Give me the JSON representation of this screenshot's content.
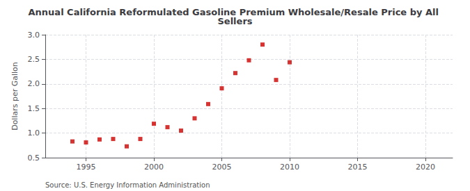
{
  "chart_data": {
    "type": "scatter",
    "title": "Annual California Reformulated Gasoline Premium Wholesale/Resale Price by All Sellers",
    "ylabel": "Dollars per Gallon",
    "source": "Source: U.S. Energy Information Administration",
    "x": [
      1994,
      1995,
      1996,
      1997,
      1998,
      1999,
      2000,
      2001,
      2002,
      2003,
      2004,
      2005,
      2006,
      2007,
      2008,
      2009,
      2010
    ],
    "values": [
      0.83,
      0.81,
      0.87,
      0.88,
      0.73,
      0.88,
      1.19,
      1.12,
      1.05,
      1.3,
      1.59,
      1.91,
      2.22,
      2.48,
      2.8,
      2.08,
      2.44
    ],
    "color": "#cc0000",
    "marker": "square",
    "xlim": [
      1992,
      2022
    ],
    "xticks": [
      1995,
      2000,
      2005,
      2010,
      2015,
      2020
    ],
    "ylim": [
      0.5,
      3.0
    ],
    "yticks": [
      0.5,
      {
        "value": 1.0,
        "label": "1.0"
      },
      1.5,
      {
        "value": 2.0,
        "label": "2.0"
      },
      2.5,
      {
        "value": 3.0,
        "label": "3.0"
      }
    ],
    "grid": true
  }
}
